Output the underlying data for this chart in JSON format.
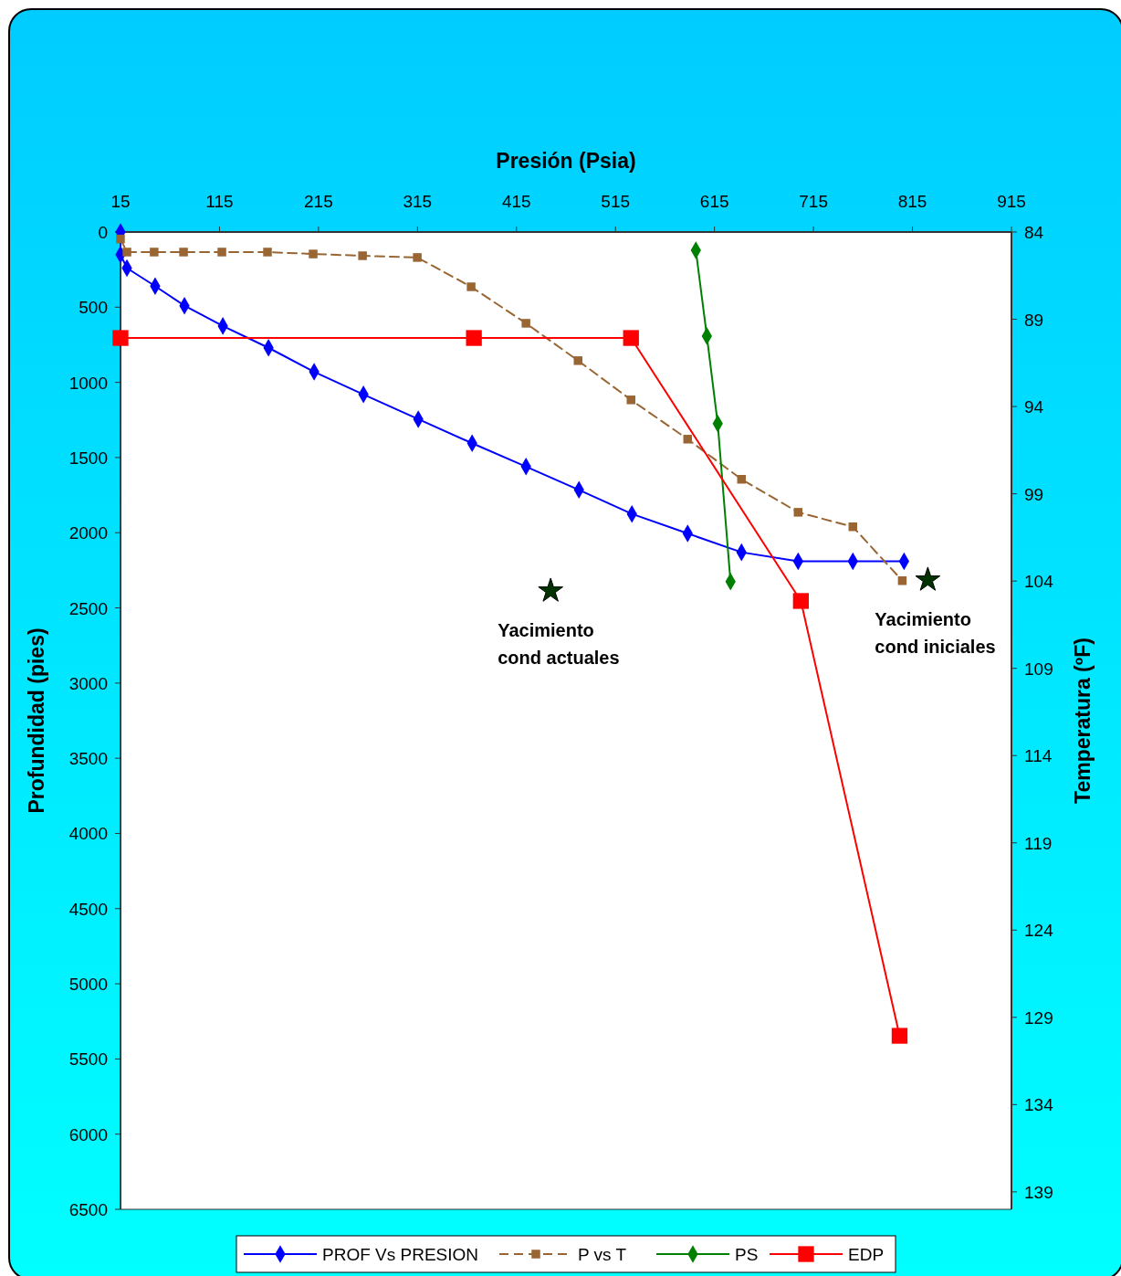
{
  "chart_data": {
    "type": "line",
    "xlabel": "Presión (Psia)",
    "ylabel": "Profundidad (pies)",
    "y2label": "Temperatura (ºF)",
    "xlim": [
      15,
      915
    ],
    "xticks": [
      15,
      115,
      215,
      315,
      415,
      515,
      615,
      715,
      815,
      915
    ],
    "ylim": [
      6500,
      0
    ],
    "yticks": [
      0,
      500,
      1000,
      1500,
      2000,
      2500,
      3000,
      3500,
      4000,
      4500,
      5000,
      5500,
      6000,
      6500
    ],
    "y2lim": [
      140,
      84
    ],
    "y2ticks": [
      84,
      89,
      94,
      99,
      104,
      109,
      114,
      119,
      124,
      129,
      134,
      139
    ],
    "grid": false,
    "legend": "bottom",
    "series": [
      {
        "name": "PROF Vs PRESION",
        "color": "#0000ff",
        "marker": "diamond",
        "line_style": "solid",
        "x": [
          15,
          15,
          21.5,
          50,
          79.6,
          118.4,
          164.5,
          210.6,
          260.4,
          315.8,
          370.2,
          424.6,
          478.1,
          531.6,
          587.9,
          642.3,
          699.5,
          754.8,
          806.5
        ],
        "values": [
          0,
          150,
          240,
          360,
          490,
          625,
          770,
          930,
          1080,
          1245,
          1405,
          1560,
          1715,
          1875,
          2005,
          2130,
          2190,
          2190,
          2190
        ]
      },
      {
        "name": "P vs T",
        "color": "#996633",
        "marker": "square",
        "line_style": "dashed",
        "axis": "y2",
        "x": [
          15,
          21.5,
          49,
          78.7,
          117.4,
          163.5,
          209.6,
          259.5,
          314.8,
          369.2,
          424.6,
          477.2,
          530.7,
          587.9,
          642.3,
          699.5,
          754.8,
          804.7
        ],
        "values": [
          84.4,
          85.15,
          85.15,
          85.15,
          85.15,
          85.15,
          85.26,
          85.36,
          85.46,
          87.14,
          89.23,
          91.37,
          93.62,
          95.87,
          98.17,
          100.06,
          100.89,
          103.98
        ]
      },
      {
        "name": "PS",
        "color": "#008000",
        "marker": "diamond",
        "line_style": "solid",
        "axis": "y2",
        "x": [
          596.2,
          607.3,
          618.3,
          631.2
        ],
        "values": [
          85.05,
          89.96,
          94.98,
          104.03
        ]
      },
      {
        "name": "EDP",
        "color": "#ff0000",
        "marker": "square",
        "line_style": "solid",
        "x": [
          15,
          372,
          530.7,
          702.3,
          802
        ],
        "values": [
          705,
          705,
          705,
          2454,
          5346
        ]
      },
      {
        "type": "scatter",
        "color": "#003300",
        "marker": "star",
        "x": [
          449.5,
          830.5
        ],
        "values": [
          2387,
          2314
        ]
      }
    ],
    "annotations": [
      {
        "text": "Yacimiento\ncond actuales",
        "x": 449.5,
        "y": 2387
      },
      {
        "text": "Yacimiento\ncond iniciales",
        "x": 830.5,
        "y": 2314
      }
    ]
  }
}
